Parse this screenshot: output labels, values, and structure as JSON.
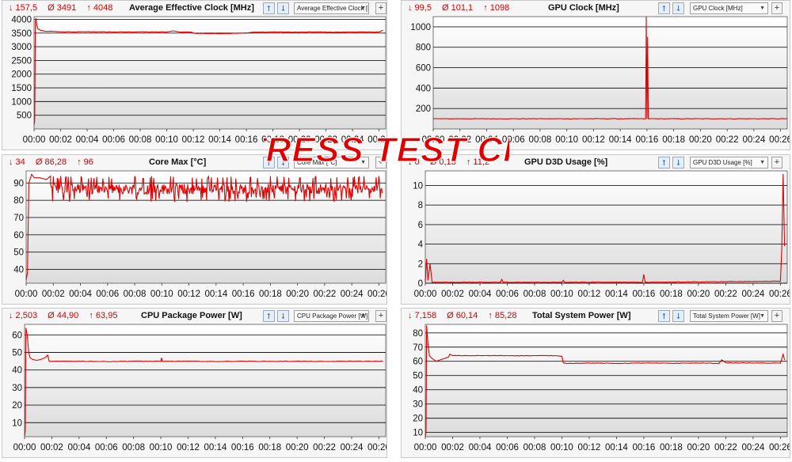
{
  "colors": {
    "line": "#e00000",
    "stats": "#d00000",
    "grid": "#1a1a1a",
    "plotTop": "#ffffff",
    "plotBottom": "#dcdcdc"
  },
  "watermark": {
    "text": "STRESS TEST CPU"
  },
  "icons": {
    "up": "arrow-up-icon",
    "down": "arrow-down-icon",
    "add": "plus-icon"
  },
  "panels": [
    {
      "id": "avg-clock",
      "stats": {
        "min": "↓ 157,5",
        "avg": "Ø 3491",
        "max": "↑ 4048"
      },
      "title": "Average Effective Clock [MHz]",
      "select": "Average Effective Clock [MHz]"
    },
    {
      "id": "gpu-clock",
      "stats": {
        "min": "↓ 99,5",
        "avg": "Ø 101,1",
        "max": "↑ 1098"
      },
      "title": "GPU Clock [MHz]",
      "select": "GPU Clock [MHz]"
    },
    {
      "id": "core-max",
      "stats": {
        "min": "↓ 34",
        "avg": "Ø 86,28",
        "max": "↑ 96"
      },
      "title": "Core Max [°C]",
      "select": "Core Max [°C]"
    },
    {
      "id": "gpu-d3d",
      "stats": {
        "min": "↓ 0",
        "avg": "Ø 0,13",
        "max": "↑ 11,2"
      },
      "title": "GPU D3D Usage [%]",
      "select": "GPU D3D Usage [%]"
    },
    {
      "id": "cpu-power",
      "stats": {
        "min": "↓ 2,503",
        "avg": "Ø 44,90",
        "max": "↑ 63,95"
      },
      "title": "CPU Package Power [W]",
      "select": "CPU Package Power [W]"
    },
    {
      "id": "sys-power",
      "stats": {
        "min": "↓ 7,158",
        "avg": "Ø 60,14",
        "max": "↑ 85,28"
      },
      "title": "Total System Power [W]",
      "select": "Total System Power [W]"
    }
  ],
  "chart_data": [
    {
      "type": "line",
      "title": "Average Effective Clock [MHz]",
      "xlabel": "",
      "ylabel": "",
      "xlim": [
        0,
        26.5
      ],
      "ylim": [
        0,
        4100
      ],
      "yticks": [
        500,
        1000,
        1500,
        2000,
        2500,
        3000,
        3500,
        4000
      ],
      "xticklabels": [
        "00:00",
        "00:02",
        "00:04",
        "00:06",
        "00:08",
        "00:10",
        "00:12",
        "00:14",
        "00:16",
        "00:18",
        "00:20",
        "00:22",
        "00:24",
        "00:26"
      ],
      "series": [
        {
          "x": [
            0,
            0.05,
            0.1,
            0.15,
            0.2,
            0.3,
            0.5,
            0.8,
            1.0,
            1.2,
            1.5,
            2,
            3,
            4,
            5,
            6,
            7,
            8,
            9,
            10,
            10.5,
            11,
            11.5,
            11.9,
            12,
            13,
            14,
            15,
            16,
            16.5,
            17,
            18,
            19,
            20,
            21,
            22,
            23,
            24,
            25,
            26,
            26.3
          ],
          "y": [
            157,
            300,
            3900,
            4048,
            3800,
            3650,
            3600,
            3570,
            3560,
            3570,
            3560,
            3545,
            3540,
            3550,
            3545,
            3540,
            3540,
            3545,
            3540,
            3540,
            3580,
            3535,
            3540,
            3530,
            3490,
            3485,
            3480,
            3490,
            3500,
            3530,
            3530,
            3540,
            3535,
            3530,
            3540,
            3535,
            3530,
            3540,
            3535,
            3540,
            3600
          ]
        }
      ]
    },
    {
      "type": "line",
      "title": "GPU Clock [MHz]",
      "xlabel": "",
      "ylabel": "",
      "xlim": [
        0,
        26.5
      ],
      "ylim": [
        0,
        1100
      ],
      "yticks": [
        200,
        400,
        600,
        800,
        1000
      ],
      "xticklabels": [
        "00:00",
        "00:02",
        "00:04",
        "00:06",
        "00:08",
        "00:10",
        "00:12",
        "00:14",
        "00:16",
        "00:18",
        "00:20",
        "00:22",
        "00:24",
        "00:26"
      ],
      "series": [
        {
          "x": [
            0,
            15.9,
            15.95,
            16.0,
            16.05,
            16.1,
            26.5
          ],
          "y": [
            100,
            100,
            1098,
            100,
            900,
            100,
            100
          ]
        }
      ]
    },
    {
      "type": "line",
      "title": "Core Max [°C]",
      "xlabel": "",
      "ylabel": "",
      "xlim": [
        0,
        26.5
      ],
      "ylim": [
        32,
        97
      ],
      "yticks": [
        40,
        50,
        60,
        70,
        80,
        90
      ],
      "xticklabels": [
        "00:00",
        "00:02",
        "00:04",
        "00:06",
        "00:08",
        "00:10",
        "00:12",
        "00:14",
        "00:16",
        "00:18",
        "00:20",
        "00:22",
        "00:24",
        "00:26"
      ],
      "series": [
        {
          "x": [
            0,
            0.1,
            0.2,
            0.4,
            0.6,
            1.0,
            1.5,
            1.8
          ],
          "y": [
            34,
            38,
            90,
            95,
            93,
            93,
            92,
            94
          ]
        }
      ],
      "noise": {
        "from": 1.8,
        "to": 26.3,
        "center": 86.5,
        "low": 79,
        "high": 94
      }
    },
    {
      "type": "line",
      "title": "GPU D3D Usage [%]",
      "xlabel": "",
      "ylabel": "",
      "xlim": [
        0,
        26.5
      ],
      "ylim": [
        0,
        11.5
      ],
      "yticks": [
        0,
        2,
        4,
        6,
        8,
        10
      ],
      "xticklabels": [
        "00:00",
        "00:02",
        "00:04",
        "00:06",
        "00:08",
        "00:10",
        "00:12",
        "00:14",
        "00:16",
        "00:18",
        "00:20",
        "00:22",
        "00:24",
        "00:26"
      ],
      "series": [
        {
          "x": [
            0,
            0.1,
            0.2,
            0.35,
            0.5,
            5.5,
            5.6,
            5.7,
            10.0,
            10.1,
            10.2,
            15.9,
            16.0,
            16.1,
            26.0,
            26.1,
            26.2,
            26.3
          ],
          "y": [
            0.1,
            2.5,
            0.3,
            2.0,
            0.1,
            0.1,
            0.4,
            0.1,
            0.1,
            0.3,
            0.1,
            0.1,
            0.9,
            0.1,
            0.2,
            3.5,
            11.2,
            3.8
          ]
        }
      ]
    },
    {
      "type": "line",
      "title": "CPU Package Power [W]",
      "xlabel": "",
      "ylabel": "",
      "xlim": [
        0,
        26.5
      ],
      "ylim": [
        2,
        66
      ],
      "yticks": [
        10,
        20,
        30,
        40,
        50,
        60
      ],
      "xticklabels": [
        "00:00",
        "00:02",
        "00:04",
        "00:06",
        "00:08",
        "00:10",
        "00:12",
        "00:14",
        "00:16",
        "00:18",
        "00:20",
        "00:22",
        "00:24",
        "00:26"
      ],
      "series": [
        {
          "x": [
            0,
            0.05,
            0.1,
            0.2,
            0.3,
            0.4,
            0.6,
            0.9,
            1.2,
            1.5,
            1.7,
            1.8,
            2,
            4,
            6,
            8,
            10,
            10.05,
            10.1,
            12,
            14,
            16,
            18,
            20,
            22,
            24,
            26,
            26.3
          ],
          "y": [
            2.5,
            5,
            63.95,
            60,
            50,
            47,
            46,
            45.5,
            46,
            47,
            48.5,
            45,
            44.9,
            45,
            44.8,
            45,
            44.9,
            47,
            44.9,
            45,
            44.8,
            45,
            44.9,
            45,
            44.8,
            45,
            44.9,
            45
          ]
        }
      ]
    },
    {
      "type": "line",
      "title": "Total System Power [W]",
      "xlabel": "",
      "ylabel": "",
      "xlim": [
        0,
        26.5
      ],
      "ylim": [
        7,
        86
      ],
      "yticks": [
        10,
        20,
        30,
        40,
        50,
        60,
        70,
        80
      ],
      "xticklabels": [
        "00:00",
        "00:02",
        "00:04",
        "00:06",
        "00:08",
        "00:10",
        "00:12",
        "00:14",
        "00:16",
        "00:18",
        "00:20",
        "00:22",
        "00:24",
        "00:26"
      ],
      "series": [
        {
          "x": [
            0,
            0.05,
            0.1,
            0.2,
            0.3,
            0.5,
            0.8,
            1.1,
            1.4,
            1.7,
            1.8,
            2,
            4,
            6,
            8,
            9.5,
            10,
            10.1,
            10.3,
            12,
            14,
            16,
            18,
            20,
            21.5,
            21.7,
            22,
            24,
            26,
            26.2,
            26.3
          ],
          "y": [
            7.2,
            10,
            85.3,
            72,
            64,
            62,
            60,
            61,
            62,
            63,
            65,
            64,
            64,
            64,
            64,
            64,
            63.5,
            59,
            58.5,
            58.8,
            58.5,
            58.8,
            58.6,
            58.8,
            58.5,
            61,
            59,
            58.8,
            58.7,
            65,
            61
          ]
        }
      ]
    }
  ]
}
